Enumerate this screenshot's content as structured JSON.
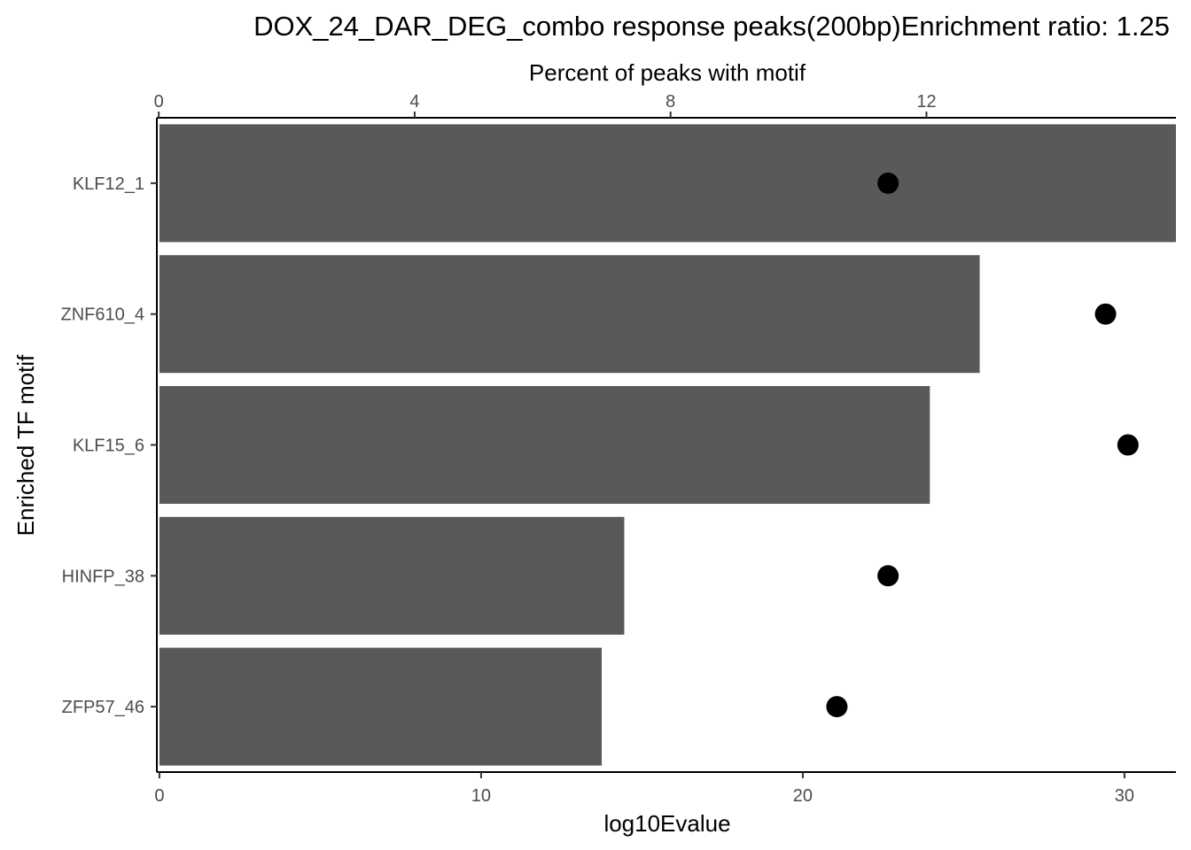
{
  "chart_data": {
    "type": "bar",
    "title": "DOX_24_DAR_DEG_combo response peaks(200bp)Enrichment ratio: 1.25",
    "xlabel": "log10Evalue",
    "ylabel": "Enriched TF motif",
    "x2label": "Percent of peaks with motif",
    "categories": [
      "KLF12_1",
      "ZNF610_4",
      "KLF15_6",
      "HINFP_38",
      "ZFP57_46"
    ],
    "series": [
      {
        "type": "bar",
        "axis": "bottom",
        "color": "#595959",
        "values": [
          31.6,
          25.5,
          23.95,
          14.45,
          13.75
        ]
      },
      {
        "type": "point",
        "axis": "top",
        "color": "#000000",
        "values": [
          11.4,
          14.8,
          15.15,
          11.4,
          10.6
        ]
      }
    ],
    "xlim": [
      -0.08,
      31.6
    ],
    "x_ticks": [
      0,
      10,
      20,
      30
    ],
    "x2lim": [
      -0.03,
      15.9
    ],
    "x2_ticks": [
      0,
      4,
      8,
      12
    ],
    "grid": false
  }
}
